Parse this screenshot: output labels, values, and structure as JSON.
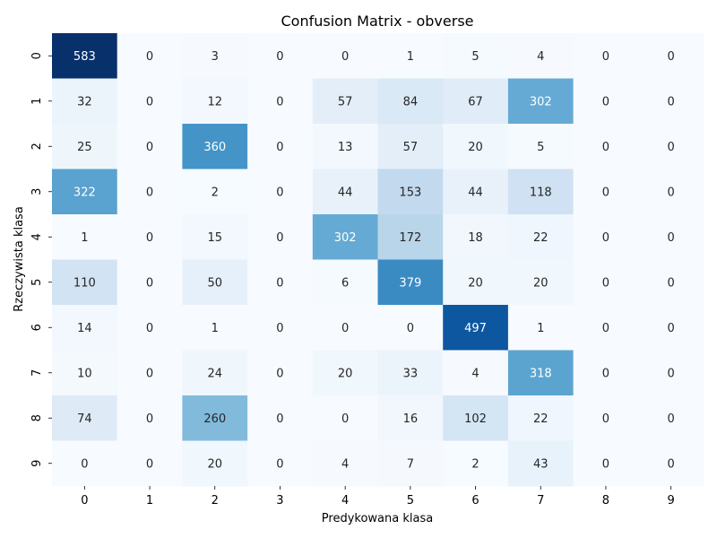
{
  "chart_data": {
    "type": "heatmap",
    "title": "Confusion Matrix - obverse",
    "xlabel": "Predykowana klasa",
    "ylabel": "Rzeczywista klasa",
    "x_categories": [
      "0",
      "1",
      "2",
      "3",
      "4",
      "5",
      "6",
      "7",
      "8",
      "9"
    ],
    "y_categories": [
      "0",
      "1",
      "2",
      "3",
      "4",
      "5",
      "6",
      "7",
      "8",
      "9"
    ],
    "values": [
      [
        583,
        0,
        3,
        0,
        0,
        1,
        5,
        4,
        0,
        0
      ],
      [
        32,
        0,
        12,
        0,
        57,
        84,
        67,
        302,
        0,
        0
      ],
      [
        25,
        0,
        360,
        0,
        13,
        57,
        20,
        5,
        0,
        0
      ],
      [
        322,
        0,
        2,
        0,
        44,
        153,
        44,
        118,
        0,
        0
      ],
      [
        1,
        0,
        15,
        0,
        302,
        172,
        18,
        22,
        0,
        0
      ],
      [
        110,
        0,
        50,
        0,
        6,
        379,
        20,
        20,
        0,
        0
      ],
      [
        14,
        0,
        1,
        0,
        0,
        0,
        497,
        1,
        0,
        0
      ],
      [
        10,
        0,
        24,
        0,
        20,
        33,
        4,
        318,
        0,
        0
      ],
      [
        74,
        0,
        260,
        0,
        0,
        16,
        102,
        22,
        0,
        0
      ],
      [
        0,
        0,
        20,
        0,
        4,
        7,
        2,
        43,
        0,
        0
      ]
    ],
    "colormap": "Blues",
    "value_range": [
      0,
      583
    ],
    "grid": false,
    "colorbar": false
  }
}
